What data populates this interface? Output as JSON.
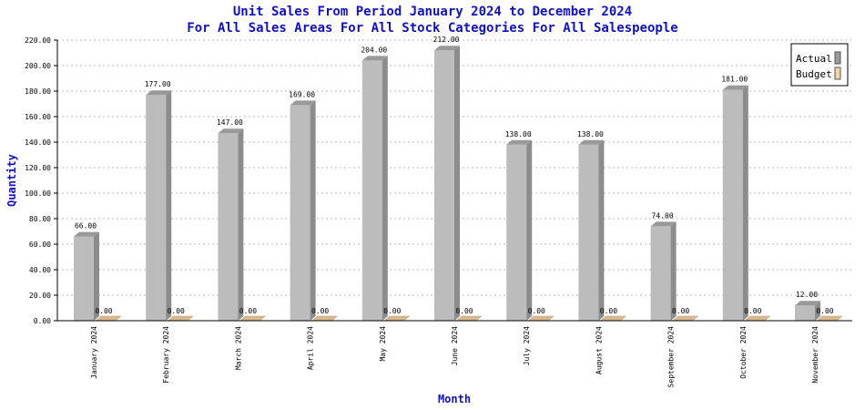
{
  "chart_data": {
    "type": "bar",
    "title": "Unit Sales From Period January 2024 to December 2024",
    "subtitle": "For All Sales Areas For All Stock Categories For All Salespeople",
    "xlabel": "Month",
    "ylabel": "Quantity",
    "ylim": [
      0,
      220
    ],
    "yticks": [
      "0.00",
      "20.00",
      "40.00",
      "60.00",
      "80.00",
      "100.00",
      "120.00",
      "140.00",
      "160.00",
      "180.00",
      "200.00",
      "220.00"
    ],
    "grid": true,
    "legend_position": "top-right",
    "categories": [
      "January 2024",
      "February 2024",
      "March 2024",
      "April 2024",
      "May 2024",
      "June 2024",
      "July 2024",
      "August 2024",
      "September 2024",
      "October 2024",
      "November 2024"
    ],
    "series": [
      {
        "name": "Actual",
        "values": [
          66,
          177,
          147,
          169,
          204,
          212,
          138,
          138,
          74,
          181,
          12
        ],
        "labels": [
          "66.00",
          "177.00",
          "147.00",
          "169.00",
          "204.00",
          "212.00",
          "138.00",
          "138.00",
          "74.00",
          "181.00",
          "12.00"
        ],
        "color": "#bcbcbc"
      },
      {
        "name": "Budget",
        "values": [
          0,
          0,
          0,
          0,
          0,
          0,
          0,
          0,
          0,
          0,
          0
        ],
        "labels": [
          "0.00",
          "0.00",
          "0.00",
          "0.00",
          "0.00",
          "0.00",
          "0.00",
          "0.00",
          "0.00",
          "0.00",
          "0.00"
        ],
        "color": "#f5d3a6"
      }
    ]
  }
}
